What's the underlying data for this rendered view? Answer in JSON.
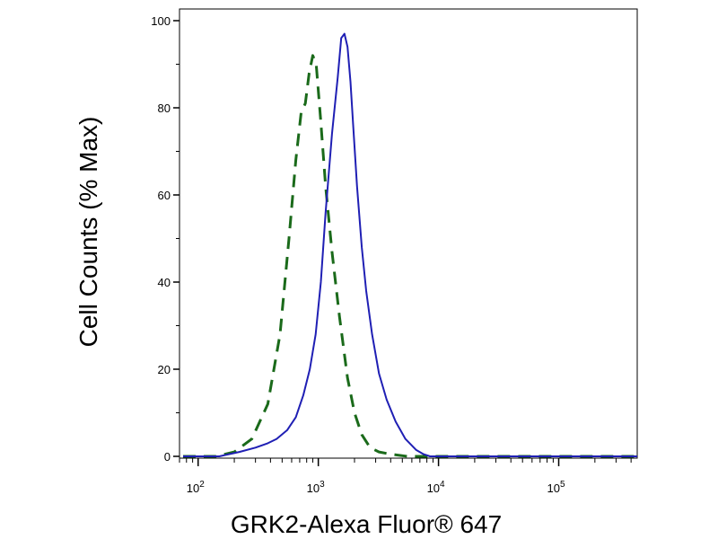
{
  "chart_data": {
    "type": "line",
    "xlabel": "GRK2-Alexa Fluor® 647",
    "ylabel": "Cell Counts (% Max)",
    "x_scale": "log",
    "xlim": [
      70,
      450000
    ],
    "ylim": [
      0,
      100
    ],
    "y_ticks": [
      0,
      20,
      40,
      60,
      80,
      100
    ],
    "x_ticks": [
      {
        "base": "10",
        "exp": "2",
        "value": 100
      },
      {
        "base": "10",
        "exp": "3",
        "value": 1000
      },
      {
        "base": "10",
        "exp": "4",
        "value": 10000
      },
      {
        "base": "10",
        "exp": "5",
        "value": 100000
      }
    ],
    "grid": false,
    "legend": "none",
    "series": [
      {
        "style": "dashed",
        "color": "#1a6a1a",
        "x": [
          75,
          140,
          200,
          280,
          380,
          480,
          570,
          650,
          720,
          780,
          840,
          900,
          960,
          1040,
          1150,
          1300,
          1500,
          1750,
          2000,
          2300,
          2700,
          3200,
          4000,
          5500,
          450000
        ],
        "y": [
          0,
          0,
          1,
          4,
          12,
          28,
          50,
          68,
          79,
          81,
          88,
          92,
          90,
          78,
          62,
          47,
          32,
          18,
          10,
          5,
          2,
          1,
          0.5,
          0,
          0
        ]
      },
      {
        "style": "solid",
        "color": "#1f1fb4",
        "x": [
          75,
          150,
          220,
          300,
          380,
          450,
          550,
          650,
          750,
          850,
          950,
          1050,
          1150,
          1300,
          1450,
          1550,
          1650,
          1750,
          1850,
          1950,
          2100,
          2300,
          2500,
          2800,
          3200,
          3700,
          4400,
          5300,
          6500,
          7500,
          8500,
          450000
        ],
        "y": [
          0,
          0,
          1,
          2,
          3,
          4,
          6,
          9,
          14,
          20,
          28,
          40,
          56,
          74,
          87,
          96,
          97,
          94,
          86,
          76,
          62,
          48,
          38,
          28,
          19,
          13,
          8,
          4,
          1.5,
          0.5,
          0,
          0
        ]
      }
    ]
  }
}
